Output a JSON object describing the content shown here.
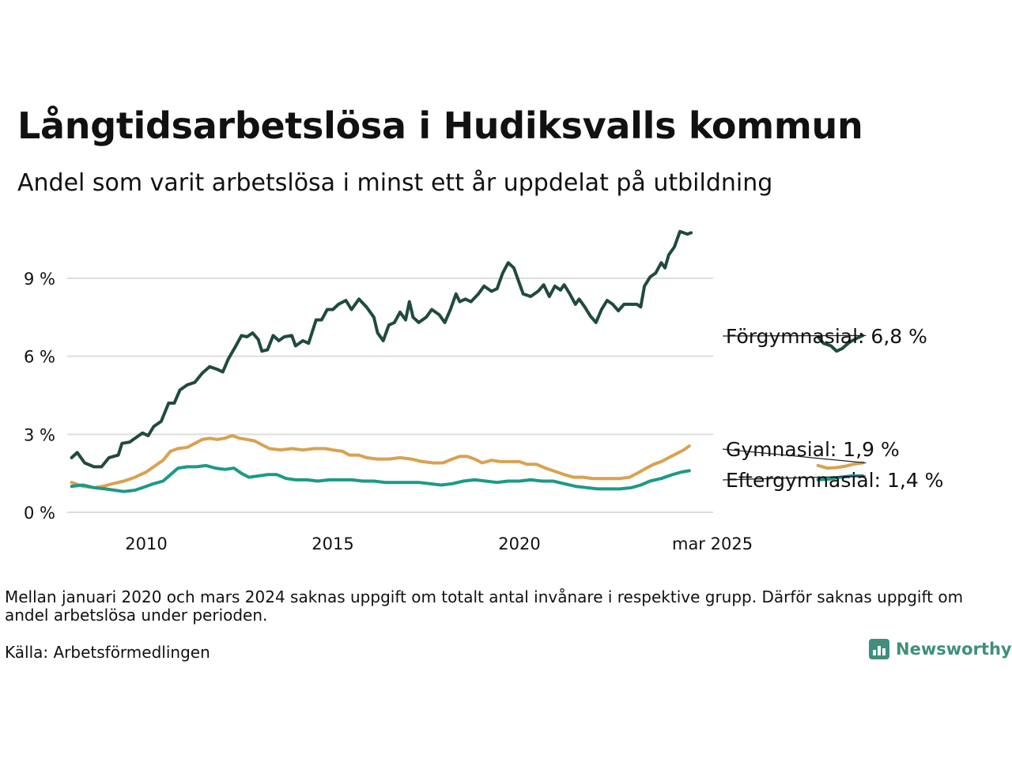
{
  "header": {
    "title": "Långtidsarbetslösa i Hudiksvalls kommun",
    "subtitle": "Andel som varit arbetslösa i minst ett år uppdelat på utbildning"
  },
  "footer": {
    "note": "Mellan januari 2020 och mars 2024 saknas uppgift om totalt antal invånare i respektive grupp. Därför saknas uppgift om andel arbetslösa under perioden.",
    "source": "Källa: Arbetsförmedlingen",
    "logo_text": "Newsworthy"
  },
  "chart_data": {
    "type": "line",
    "title": "Långtidsarbetslösa i Hudiksvalls kommun",
    "subtitle": "Andel som varit arbetslösa i minst ett år uppdelat på utbildning",
    "ylim": [
      0,
      10.5
    ],
    "y_ticks": [
      0,
      3,
      6,
      9
    ],
    "y_tick_labels": [
      "0 %",
      "3 %",
      "6 %",
      "9 %"
    ],
    "x_ticks": [
      2010,
      2015,
      2020,
      2025.17
    ],
    "x_tick_labels": [
      "2010",
      "2015",
      "2020",
      "mar 2025"
    ],
    "grid": true,
    "legend": "end-of-line labels (right)",
    "series": [
      {
        "name": "Förgymnasial",
        "end_label": "Förgymnasial: 6,8 %",
        "color": "#1f4a40",
        "segments": [
          [
            [
              2008.0,
              2.1
            ],
            [
              2008.15,
              2.3
            ],
            [
              2008.35,
              1.9
            ],
            [
              2008.6,
              1.75
            ],
            [
              2008.8,
              1.75
            ],
            [
              2009.0,
              2.1
            ],
            [
              2009.25,
              2.2
            ],
            [
              2009.35,
              2.65
            ],
            [
              2009.55,
              2.7
            ],
            [
              2009.75,
              2.9
            ],
            [
              2009.9,
              3.05
            ],
            [
              2010.05,
              2.95
            ],
            [
              2010.2,
              3.3
            ],
            [
              2010.4,
              3.5
            ],
            [
              2010.6,
              4.2
            ],
            [
              2010.75,
              4.2
            ],
            [
              2010.9,
              4.7
            ],
            [
              2011.1,
              4.9
            ],
            [
              2011.3,
              5.0
            ],
            [
              2011.5,
              5.35
            ],
            [
              2011.7,
              5.6
            ],
            [
              2011.9,
              5.5
            ],
            [
              2012.05,
              5.4
            ],
            [
              2012.2,
              5.9
            ],
            [
              2012.4,
              6.4
            ],
            [
              2012.55,
              6.8
            ],
            [
              2012.7,
              6.75
            ],
            [
              2012.85,
              6.9
            ],
            [
              2013.0,
              6.65
            ],
            [
              2013.1,
              6.2
            ],
            [
              2013.25,
              6.25
            ],
            [
              2013.4,
              6.8
            ],
            [
              2013.55,
              6.6
            ],
            [
              2013.7,
              6.75
            ],
            [
              2013.9,
              6.8
            ],
            [
              2014.0,
              6.4
            ],
            [
              2014.2,
              6.6
            ],
            [
              2014.35,
              6.5
            ],
            [
              2014.55,
              7.4
            ],
            [
              2014.7,
              7.4
            ],
            [
              2014.85,
              7.8
            ],
            [
              2015.0,
              7.8
            ],
            [
              2015.15,
              8.0
            ],
            [
              2015.35,
              8.15
            ],
            [
              2015.5,
              7.8
            ],
            [
              2015.7,
              8.2
            ],
            [
              2015.9,
              7.9
            ],
            [
              2016.1,
              7.5
            ],
            [
              2016.2,
              6.9
            ],
            [
              2016.35,
              6.6
            ],
            [
              2016.5,
              7.2
            ],
            [
              2016.65,
              7.3
            ],
            [
              2016.8,
              7.7
            ],
            [
              2016.95,
              7.4
            ],
            [
              2017.05,
              8.1
            ],
            [
              2017.15,
              7.5
            ],
            [
              2017.3,
              7.3
            ],
            [
              2017.5,
              7.5
            ],
            [
              2017.65,
              7.8
            ],
            [
              2017.85,
              7.6
            ],
            [
              2018.0,
              7.3
            ],
            [
              2018.15,
              7.8
            ],
            [
              2018.3,
              8.4
            ],
            [
              2018.4,
              8.1
            ],
            [
              2018.55,
              8.2
            ],
            [
              2018.7,
              8.1
            ],
            [
              2018.9,
              8.4
            ],
            [
              2019.05,
              8.7
            ],
            [
              2019.25,
              8.5
            ],
            [
              2019.4,
              8.6
            ],
            [
              2019.55,
              9.2
            ],
            [
              2019.7,
              9.6
            ],
            [
              2019.85,
              9.4
            ],
            [
              2020.0,
              8.8
            ],
            [
              2020.1,
              8.4
            ],
            [
              2020.3,
              8.3
            ],
            [
              2020.5,
              8.5
            ],
            [
              2020.65,
              8.75
            ],
            [
              2020.8,
              8.3
            ],
            [
              2020.95,
              8.7
            ],
            [
              2021.1,
              8.55
            ],
            [
              2021.2,
              8.75
            ],
            [
              2021.35,
              8.4
            ],
            [
              2021.5,
              8.0
            ],
            [
              2021.6,
              8.2
            ],
            [
              2021.75,
              7.9
            ],
            [
              2021.9,
              7.55
            ],
            [
              2022.05,
              7.3
            ],
            [
              2022.2,
              7.8
            ],
            [
              2022.35,
              8.15
            ],
            [
              2022.5,
              8.0
            ],
            [
              2022.65,
              7.75
            ],
            [
              2022.8,
              8.0
            ],
            [
              2023.0,
              8.0
            ],
            [
              2023.15,
              8.0
            ],
            [
              2023.25,
              7.9
            ],
            [
              2023.35,
              8.7
            ],
            [
              2023.5,
              9.05
            ],
            [
              2023.65,
              9.2
            ],
            [
              2023.8,
              9.6
            ],
            [
              2023.9,
              9.4
            ],
            [
              2024.0,
              9.9
            ],
            [
              2024.15,
              10.2
            ],
            [
              2024.3,
              10.8
            ],
            [
              2024.5,
              10.7
            ],
            [
              2024.6,
              10.75
            ]
          ],
          [
            [
              2028.0,
              6.75
            ],
            [
              2028.15,
              6.5
            ],
            [
              2028.35,
              6.4
            ],
            [
              2028.5,
              6.2
            ],
            [
              2028.65,
              6.3
            ],
            [
              2028.85,
              6.55
            ],
            [
              2029.05,
              6.7
            ],
            [
              2029.2,
              6.8
            ]
          ]
        ]
      },
      {
        "name": "Gymnasial",
        "end_label": "Gymnasial: 1,9 %",
        "color": "#d9a24f",
        "segments": [
          [
            [
              2008.0,
              1.15
            ],
            [
              2008.3,
              1.0
            ],
            [
              2008.6,
              0.95
            ],
            [
              2008.85,
              1.0
            ],
            [
              2009.1,
              1.1
            ],
            [
              2009.4,
              1.2
            ],
            [
              2009.7,
              1.35
            ],
            [
              2010.0,
              1.55
            ],
            [
              2010.2,
              1.75
            ],
            [
              2010.45,
              2.0
            ],
            [
              2010.65,
              2.35
            ],
            [
              2010.85,
              2.45
            ],
            [
              2011.1,
              2.5
            ],
            [
              2011.3,
              2.65
            ],
            [
              2011.5,
              2.8
            ],
            [
              2011.7,
              2.85
            ],
            [
              2011.9,
              2.8
            ],
            [
              2012.1,
              2.85
            ],
            [
              2012.3,
              2.95
            ],
            [
              2012.5,
              2.85
            ],
            [
              2012.7,
              2.8
            ],
            [
              2012.9,
              2.75
            ],
            [
              2013.1,
              2.6
            ],
            [
              2013.3,
              2.45
            ],
            [
              2013.6,
              2.4
            ],
            [
              2013.9,
              2.45
            ],
            [
              2014.2,
              2.4
            ],
            [
              2014.5,
              2.45
            ],
            [
              2014.8,
              2.45
            ],
            [
              2015.0,
              2.4
            ],
            [
              2015.25,
              2.35
            ],
            [
              2015.45,
              2.2
            ],
            [
              2015.7,
              2.2
            ],
            [
              2015.9,
              2.1
            ],
            [
              2016.2,
              2.05
            ],
            [
              2016.5,
              2.05
            ],
            [
              2016.8,
              2.1
            ],
            [
              2017.1,
              2.05
            ],
            [
              2017.4,
              1.95
            ],
            [
              2017.7,
              1.9
            ],
            [
              2017.95,
              1.9
            ],
            [
              2018.2,
              2.05
            ],
            [
              2018.4,
              2.15
            ],
            [
              2018.6,
              2.15
            ],
            [
              2018.8,
              2.05
            ],
            [
              2019.0,
              1.9
            ],
            [
              2019.25,
              2.0
            ],
            [
              2019.5,
              1.95
            ],
            [
              2019.75,
              1.95
            ],
            [
              2020.0,
              1.95
            ],
            [
              2020.2,
              1.85
            ],
            [
              2020.45,
              1.85
            ],
            [
              2020.7,
              1.7
            ],
            [
              2021.0,
              1.55
            ],
            [
              2021.2,
              1.45
            ],
            [
              2021.45,
              1.35
            ],
            [
              2021.7,
              1.35
            ],
            [
              2021.95,
              1.3
            ],
            [
              2022.2,
              1.3
            ],
            [
              2022.45,
              1.3
            ],
            [
              2022.7,
              1.3
            ],
            [
              2022.95,
              1.35
            ],
            [
              2023.15,
              1.5
            ],
            [
              2023.4,
              1.7
            ],
            [
              2023.6,
              1.85
            ],
            [
              2023.8,
              1.95
            ],
            [
              2024.0,
              2.1
            ],
            [
              2024.2,
              2.25
            ],
            [
              2024.4,
              2.4
            ],
            [
              2024.55,
              2.55
            ]
          ],
          [
            [
              2028.0,
              1.8
            ],
            [
              2028.25,
              1.7
            ],
            [
              2028.5,
              1.72
            ],
            [
              2028.75,
              1.78
            ],
            [
              2028.95,
              1.85
            ],
            [
              2029.2,
              1.9
            ]
          ]
        ]
      },
      {
        "name": "Eftergymnasial",
        "end_label": "Eftergymnasial: 1,4 %",
        "color": "#1b9a87",
        "segments": [
          [
            [
              2008.0,
              1.0
            ],
            [
              2008.3,
              1.05
            ],
            [
              2008.6,
              0.95
            ],
            [
              2008.9,
              0.9
            ],
            [
              2009.15,
              0.85
            ],
            [
              2009.4,
              0.8
            ],
            [
              2009.7,
              0.85
            ],
            [
              2010.0,
              1.0
            ],
            [
              2010.2,
              1.1
            ],
            [
              2010.45,
              1.2
            ],
            [
              2010.65,
              1.45
            ],
            [
              2010.85,
              1.7
            ],
            [
              2011.1,
              1.75
            ],
            [
              2011.35,
              1.75
            ],
            [
              2011.6,
              1.8
            ],
            [
              2011.85,
              1.7
            ],
            [
              2012.1,
              1.65
            ],
            [
              2012.35,
              1.7
            ],
            [
              2012.55,
              1.5
            ],
            [
              2012.75,
              1.35
            ],
            [
              2013.0,
              1.4
            ],
            [
              2013.25,
              1.45
            ],
            [
              2013.5,
              1.45
            ],
            [
              2013.75,
              1.3
            ],
            [
              2014.0,
              1.25
            ],
            [
              2014.3,
              1.25
            ],
            [
              2014.6,
              1.2
            ],
            [
              2014.9,
              1.25
            ],
            [
              2015.2,
              1.25
            ],
            [
              2015.5,
              1.25
            ],
            [
              2015.8,
              1.2
            ],
            [
              2016.1,
              1.2
            ],
            [
              2016.4,
              1.15
            ],
            [
              2016.7,
              1.15
            ],
            [
              2017.0,
              1.15
            ],
            [
              2017.3,
              1.15
            ],
            [
              2017.6,
              1.1
            ],
            [
              2017.9,
              1.05
            ],
            [
              2018.2,
              1.1
            ],
            [
              2018.5,
              1.2
            ],
            [
              2018.8,
              1.25
            ],
            [
              2019.1,
              1.2
            ],
            [
              2019.4,
              1.15
            ],
            [
              2019.7,
              1.2
            ],
            [
              2020.0,
              1.2
            ],
            [
              2020.3,
              1.25
            ],
            [
              2020.6,
              1.2
            ],
            [
              2020.9,
              1.2
            ],
            [
              2021.2,
              1.1
            ],
            [
              2021.5,
              1.0
            ],
            [
              2021.8,
              0.95
            ],
            [
              2022.1,
              0.9
            ],
            [
              2022.4,
              0.9
            ],
            [
              2022.7,
              0.9
            ],
            [
              2023.0,
              0.95
            ],
            [
              2023.25,
              1.05
            ],
            [
              2023.5,
              1.2
            ],
            [
              2023.8,
              1.3
            ],
            [
              2024.1,
              1.45
            ],
            [
              2024.35,
              1.55
            ],
            [
              2024.55,
              1.6
            ]
          ],
          [
            [
              2028.0,
              1.25
            ],
            [
              2028.3,
              1.28
            ],
            [
              2028.6,
              1.35
            ],
            [
              2028.9,
              1.4
            ],
            [
              2029.2,
              1.4
            ]
          ]
        ]
      }
    ]
  }
}
